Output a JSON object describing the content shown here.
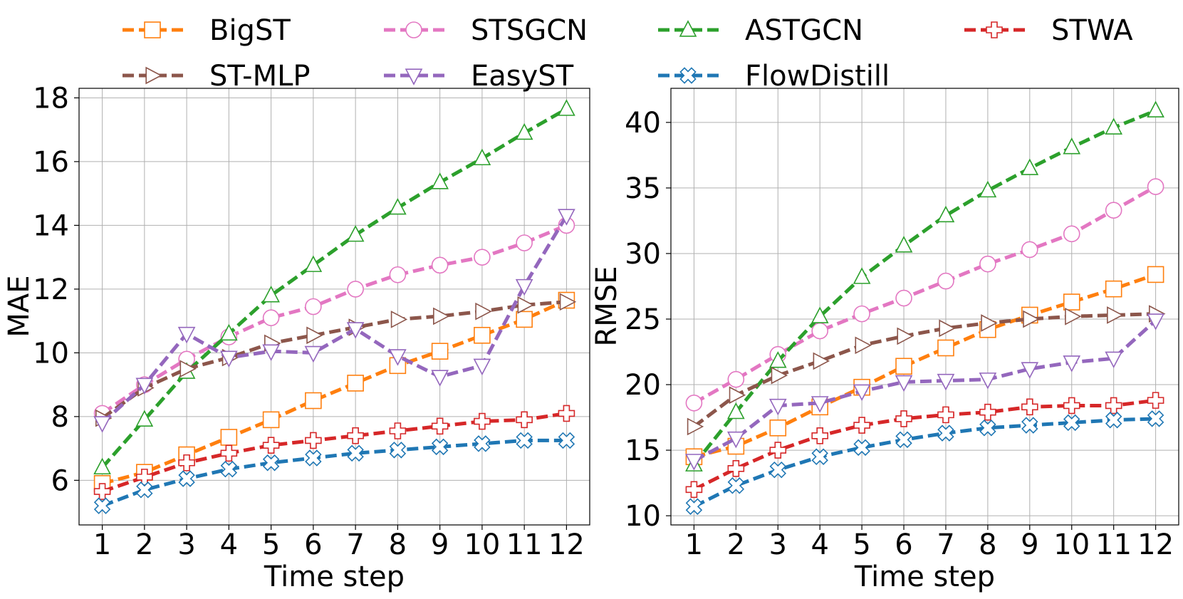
{
  "chart_data": [
    {
      "type": "line",
      "id": "mae",
      "title": "",
      "xlabel": "Time step",
      "ylabel": "MAE",
      "x": [
        1,
        2,
        3,
        4,
        5,
        6,
        7,
        8,
        9,
        10,
        11,
        12
      ],
      "xlim": [
        0.45,
        12.55
      ],
      "ylim": [
        4.6,
        18.3
      ],
      "yticks": [
        6,
        8,
        10,
        12,
        14,
        16,
        18
      ],
      "grid": true,
      "series": [
        {
          "name": "BigST",
          "color": "#ff7f0e",
          "marker": "square",
          "values": [
            5.9,
            6.25,
            6.8,
            7.35,
            7.9,
            8.5,
            9.05,
            9.6,
            10.05,
            10.55,
            11.05,
            11.65
          ]
        },
        {
          "name": "STSGCN",
          "color": "#e377c2",
          "marker": "circle",
          "values": [
            8.1,
            9.0,
            9.8,
            10.5,
            11.1,
            11.45,
            12.0,
            12.45,
            12.75,
            13.0,
            13.45,
            14.0
          ]
        },
        {
          "name": "ASTGCN",
          "color": "#2ca02c",
          "marker": "triangle-up",
          "values": [
            6.4,
            7.9,
            9.4,
            10.6,
            11.8,
            12.75,
            13.7,
            14.55,
            15.35,
            16.1,
            16.9,
            17.65
          ]
        },
        {
          "name": "STWA",
          "color": "#d62728",
          "marker": "plus",
          "values": [
            5.65,
            6.1,
            6.55,
            6.85,
            7.1,
            7.25,
            7.4,
            7.55,
            7.7,
            7.85,
            7.9,
            8.1
          ]
        },
        {
          "name": "ST-MLP",
          "color": "#8c564b",
          "marker": "triangle-right",
          "values": [
            7.95,
            8.9,
            9.5,
            9.85,
            10.3,
            10.55,
            10.8,
            11.05,
            11.15,
            11.3,
            11.5,
            11.6
          ]
        },
        {
          "name": "EasyST",
          "color": "#9467bd",
          "marker": "triangle-down",
          "values": [
            7.8,
            9.0,
            10.6,
            9.85,
            10.05,
            10.0,
            10.75,
            9.9,
            9.25,
            9.6,
            12.1,
            14.3
          ]
        },
        {
          "name": "FlowDistill",
          "color": "#1f77b4",
          "marker": "x",
          "values": [
            5.2,
            5.7,
            6.05,
            6.35,
            6.55,
            6.7,
            6.85,
            6.95,
            7.05,
            7.15,
            7.25,
            7.25
          ]
        }
      ]
    },
    {
      "type": "line",
      "id": "rmse",
      "title": "",
      "xlabel": "Time step",
      "ylabel": "RMSE",
      "x": [
        1,
        2,
        3,
        4,
        5,
        6,
        7,
        8,
        9,
        10,
        11,
        12
      ],
      "xlim": [
        0.45,
        12.55
      ],
      "ylim": [
        9.3,
        42.6
      ],
      "yticks": [
        10,
        15,
        20,
        25,
        30,
        35,
        40
      ],
      "grid": true,
      "series": [
        {
          "name": "BigST",
          "color": "#ff7f0e",
          "marker": "square",
          "values": [
            14.5,
            15.3,
            16.7,
            18.3,
            19.8,
            21.4,
            22.8,
            24.2,
            25.3,
            26.3,
            27.3,
            28.4
          ]
        },
        {
          "name": "STSGCN",
          "color": "#e377c2",
          "marker": "circle",
          "values": [
            18.6,
            20.4,
            22.3,
            24.1,
            25.4,
            26.6,
            27.9,
            29.2,
            30.3,
            31.5,
            33.3,
            35.1
          ]
        },
        {
          "name": "ASTGCN",
          "color": "#2ca02c",
          "marker": "triangle-up",
          "values": [
            13.9,
            17.9,
            21.8,
            25.2,
            28.2,
            30.6,
            32.9,
            34.8,
            36.5,
            38.1,
            39.6,
            40.9
          ]
        },
        {
          "name": "STWA",
          "color": "#d62728",
          "marker": "plus",
          "values": [
            12.0,
            13.6,
            15.0,
            16.1,
            16.9,
            17.4,
            17.7,
            17.9,
            18.3,
            18.4,
            18.4,
            18.8
          ]
        },
        {
          "name": "ST-MLP",
          "color": "#8c564b",
          "marker": "triangle-right",
          "values": [
            16.8,
            19.2,
            20.7,
            21.8,
            23.0,
            23.7,
            24.3,
            24.7,
            25.0,
            25.2,
            25.3,
            25.4
          ]
        },
        {
          "name": "EasyST",
          "color": "#9467bd",
          "marker": "triangle-down",
          "values": [
            14.2,
            15.9,
            18.4,
            18.6,
            19.5,
            20.2,
            20.3,
            20.4,
            21.2,
            21.7,
            22.0,
            24.9
          ]
        },
        {
          "name": "FlowDistill",
          "color": "#1f77b4",
          "marker": "x",
          "values": [
            10.7,
            12.3,
            13.5,
            14.5,
            15.2,
            15.8,
            16.3,
            16.7,
            16.9,
            17.1,
            17.3,
            17.4
          ]
        }
      ]
    }
  ],
  "legend": {
    "placement": "top",
    "columns": 4,
    "entries": [
      "BigST",
      "STSGCN",
      "ASTGCN",
      "STWA",
      "ST-MLP",
      "EasyST",
      "FlowDistill"
    ]
  }
}
